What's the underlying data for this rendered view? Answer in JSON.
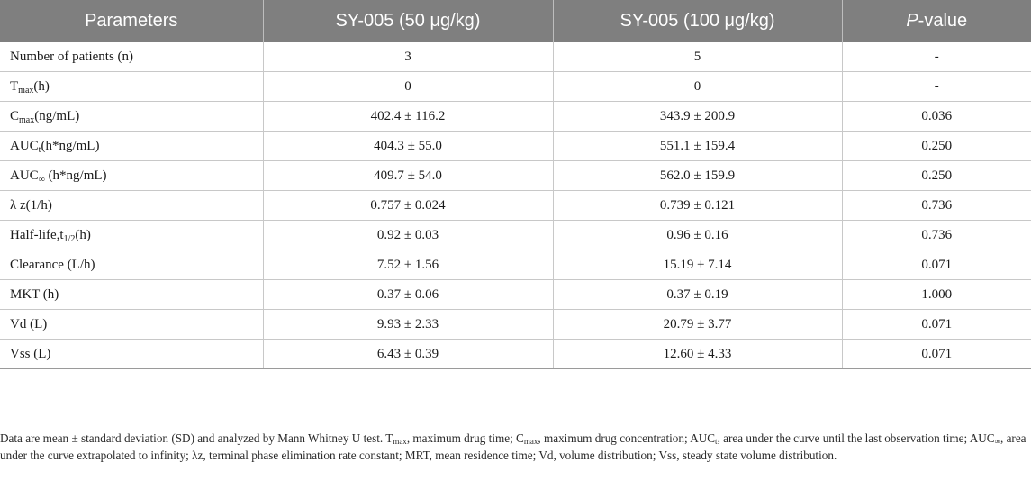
{
  "table": {
    "headers": {
      "parameters": "Parameters",
      "dose50": "SY-005 (50 μg/kg)",
      "dose100": "SY-005 (100 μg/kg)",
      "p_italic": "P",
      "p_rest": "-value"
    },
    "rows": [
      {
        "param": "Number of patients (n)",
        "v50": "3",
        "v100": "5",
        "p": "-"
      },
      {
        "param_base": "T",
        "param_sub": "max",
        "param_tail": "(h)",
        "v50": "0",
        "v100": "0",
        "p": "-"
      },
      {
        "param_base": "C",
        "param_sub": "max",
        "param_tail": "(ng/mL)",
        "v50": "402.4 ± 116.2",
        "v100": "343.9 ± 200.9",
        "p": "0.036"
      },
      {
        "param_base": "AUC",
        "param_sub": "t",
        "param_tail": "(h*ng/mL)",
        "v50": "404.3 ± 55.0",
        "v100": "551.1 ± 159.4",
        "p": "0.250"
      },
      {
        "param_base": "AUC",
        "param_sub": "∞",
        "param_tail": " (h*ng/mL)",
        "v50": "409.7 ± 54.0",
        "v100": "562.0 ± 159.9",
        "p": "0.250"
      },
      {
        "param": "λ z(1/h)",
        "v50": "0.757 ± 0.024",
        "v100": "0.739 ± 0.121",
        "p": "0.736"
      },
      {
        "param_base": "Half-life,t",
        "param_sub": "1/2",
        "param_tail": "(h)",
        "v50": "0.92 ± 0.03",
        "v100": "0.96 ± 0.16",
        "p": "0.736"
      },
      {
        "param": "Clearance (L/h)",
        "v50": "7.52 ± 1.56",
        "v100": "15.19 ± 7.14",
        "p": "0.071"
      },
      {
        "param": "MKT (h)",
        "v50": "0.37 ± 0.06",
        "v100": "0.37 ± 0.19",
        "p": "1.000"
      },
      {
        "param": "Vd (L)",
        "v50": "9.93 ± 2.33",
        "v100": "20.79 ± 3.77",
        "p": "0.071"
      },
      {
        "param": "Vss (L)",
        "v50": "6.43 ± 0.39",
        "v100": "12.60 ± 4.33",
        "p": "0.071"
      }
    ]
  },
  "footnote": {
    "s1": "Data are mean ± standard deviation (SD) and analyzed by Mann Whitney U test. T",
    "sub1": "max",
    "s2": ", maximum drug time; C",
    "sub2": "max",
    "s3": ", maximum drug concentration; AUC",
    "sub3": "t",
    "s4": ", area under the curve until the last observation time; AUC",
    "sub4": "∞",
    "s5": ", area under the curve extrapolated to infinity; λz, terminal phase elimination rate constant; MRT, mean residence time; Vd, volume distribution; Vss, steady state volume distribution."
  }
}
